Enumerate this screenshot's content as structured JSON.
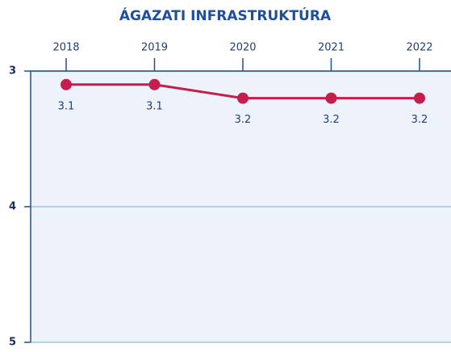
{
  "chart_data": {
    "type": "line",
    "title": "ÁGAZATI INFRASTRUKTÚRA",
    "categories": [
      "2018",
      "2019",
      "2020",
      "2021",
      "2022"
    ],
    "series": [
      {
        "name": "Ágazati infrastruktúra",
        "color": "#c41e4a",
        "values": [
          3.1,
          3.1,
          3.2,
          3.2,
          3.2
        ]
      }
    ],
    "ylim": [
      3,
      5
    ],
    "yticks": [
      3,
      4,
      5
    ],
    "y_inverted": true,
    "grid": true,
    "data_labels": true,
    "x_axis_position": "top"
  }
}
